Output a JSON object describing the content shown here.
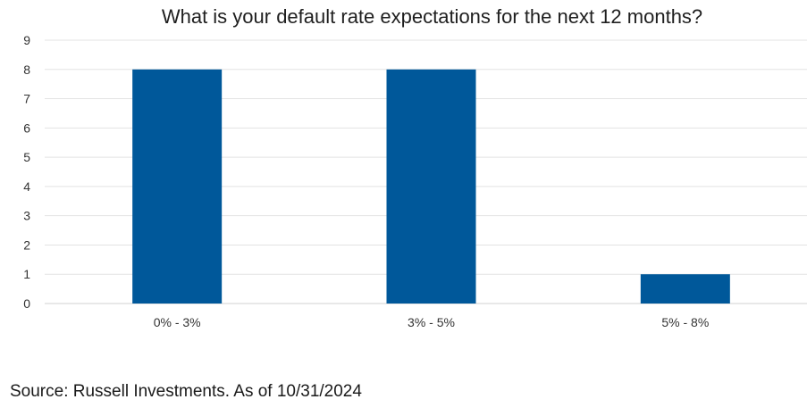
{
  "chart_data": {
    "type": "bar",
    "title": "What is your default rate expectations for the next 12 months?",
    "categories": [
      "0% - 3%",
      "3% - 5%",
      "5% - 8%"
    ],
    "values": [
      8,
      8,
      1
    ],
    "ylim": [
      0,
      9
    ],
    "yticks": [
      0,
      1,
      2,
      3,
      4,
      5,
      6,
      7,
      8,
      9
    ],
    "grid": true,
    "bar_color": "#00589A",
    "grid_color": "#E3E3E3"
  },
  "footer": {
    "source": "Source: Russell Investments. As of 10/31/2024"
  }
}
